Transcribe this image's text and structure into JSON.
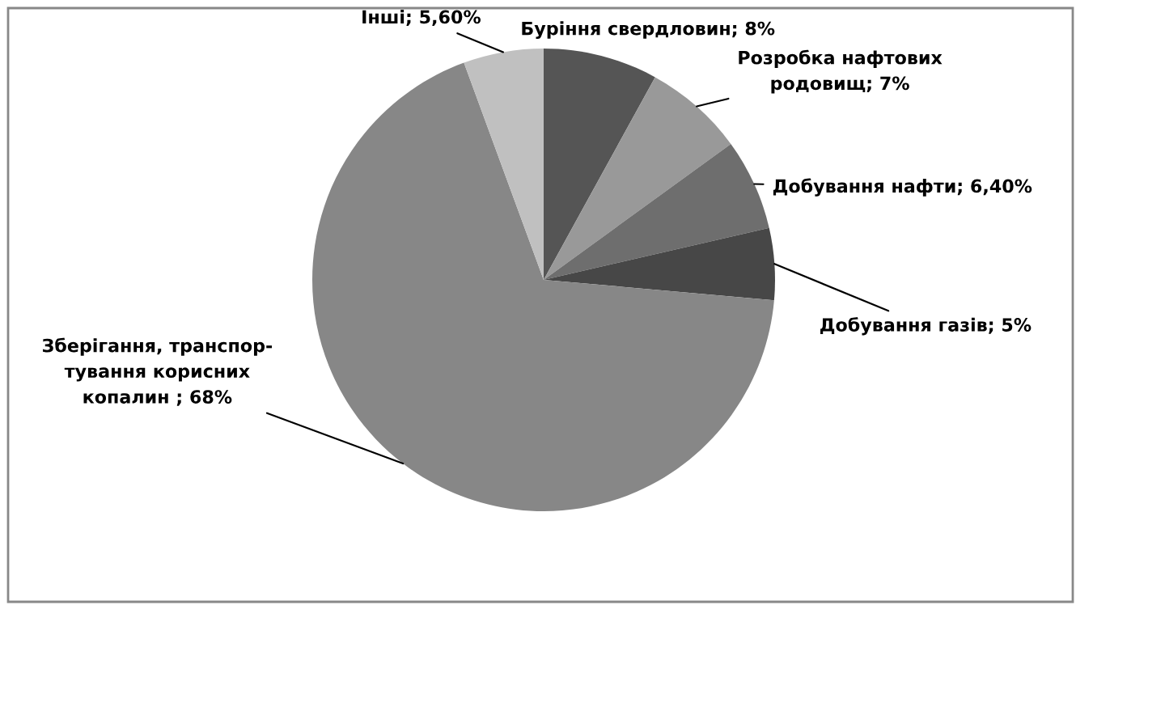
{
  "chart_data": {
    "type": "pie",
    "categories": [
      "Буріння свердловин",
      "Розробка нафтових\nродовищ",
      "Добування нафти",
      "Добування газів",
      "Зберігання, транспор-\nтування корисних\nкопалин",
      "Інші"
    ],
    "values": [
      8,
      7,
      6.4,
      5,
      68,
      5.6
    ],
    "value_labels": [
      "8%",
      "7%",
      "6,40%",
      "5%",
      "68%",
      "5,60%"
    ],
    "colors": [
      "#555555",
      "#999999",
      "#6e6e6e",
      "#474747",
      "#878787",
      "#c0c0c0"
    ],
    "legend": false
  }
}
